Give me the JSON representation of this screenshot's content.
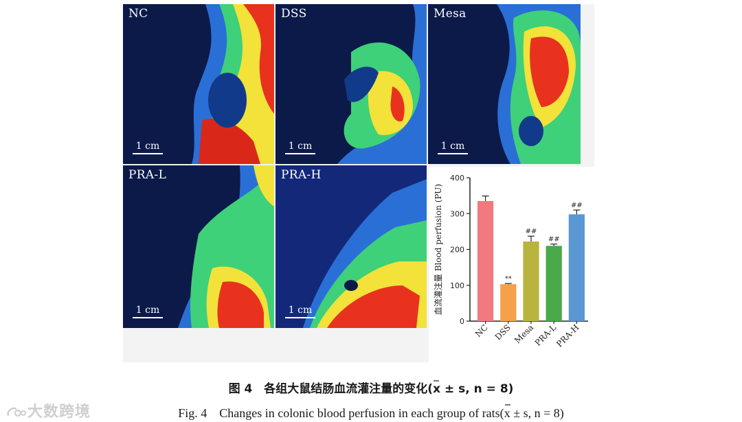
{
  "panels": [
    {
      "label": "NC",
      "scale": "1 cm"
    },
    {
      "label": "DSS",
      "scale": "1 cm"
    },
    {
      "label": "Mesa",
      "scale": "1 cm"
    },
    {
      "label": "PRA-L",
      "scale": "1 cm"
    },
    {
      "label": "PRA-H",
      "scale": "1 cm"
    }
  ],
  "chart_data": {
    "type": "bar",
    "categories": [
      "NC",
      "DSS",
      "Mesa",
      "PRA-L",
      "PRA-H"
    ],
    "values": [
      335,
      103,
      222,
      210,
      298
    ],
    "errors": [
      14,
      2,
      15,
      5,
      12
    ],
    "annotations": [
      "",
      "**",
      "##",
      "##",
      "##"
    ],
    "colors": [
      "#f07a7e",
      "#f5a04a",
      "#b9b43e",
      "#4aa94a",
      "#5a98d4"
    ],
    "ylabel": "血流灌注量 Blood perfusion (PU)",
    "ylim": [
      0,
      400
    ],
    "yticks": [
      0,
      100,
      200,
      300,
      400
    ],
    "grid": false
  },
  "caption": {
    "cn_prefix": "图 4　各组大鼠结肠血流灌注量的变化(",
    "en_prefix": "Fig. 4　Changes in colonic blood perfusion in each group of rats(",
    "xbar": "x",
    "stat": " ± s, n = 8)"
  },
  "watermark": "大数跨境"
}
